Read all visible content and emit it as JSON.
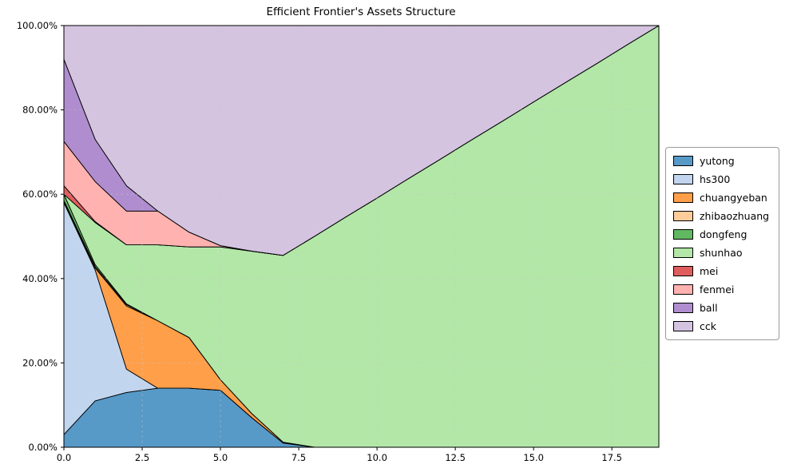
{
  "chart_data": {
    "type": "area",
    "stacked": true,
    "title": "Efficient Frontier's Assets Structure",
    "xlabel": "",
    "ylabel": "",
    "xlim": [
      0,
      19
    ],
    "ylim": [
      0,
      100
    ],
    "grid": true,
    "legend_position": "right",
    "edge_color": "#000000",
    "fill_opacity": 0.75,
    "x": [
      0,
      1,
      2,
      3,
      4,
      5,
      6,
      7,
      8,
      9,
      10,
      11,
      12,
      13,
      14,
      15,
      16,
      17,
      18,
      19
    ],
    "series": [
      {
        "name": "yutong",
        "color": "#1f77b4",
        "values": [
          3,
          11,
          13,
          14,
          14,
          13.5,
          7,
          1,
          0,
          0,
          0,
          0,
          0,
          0,
          0,
          0,
          0,
          0,
          0,
          0
        ]
      },
      {
        "name": "hs300",
        "color": "#aec7e8",
        "values": [
          55,
          31,
          5.5,
          0,
          0,
          0,
          0,
          0,
          0,
          0,
          0,
          0,
          0,
          0,
          0,
          0,
          0,
          0,
          0,
          0
        ]
      },
      {
        "name": "chuangyeban",
        "color": "#ff7f0e",
        "values": [
          0.3,
          0.5,
          15,
          16,
          12,
          2.5,
          1,
          0.2,
          0,
          0,
          0,
          0,
          0,
          0,
          0,
          0,
          0,
          0,
          0,
          0
        ]
      },
      {
        "name": "zhibaozhuang",
        "color": "#ffbb78",
        "values": [
          0.2,
          0.3,
          0.3,
          0,
          0,
          0,
          0,
          0,
          0,
          0,
          0,
          0,
          0,
          0,
          0,
          0,
          0,
          0,
          0,
          0
        ]
      },
      {
        "name": "dongfeng",
        "color": "#2ca02c",
        "values": [
          1.5,
          0.5,
          0.2,
          0,
          0,
          0,
          0,
          0,
          0,
          0,
          0,
          0,
          0,
          0,
          0,
          0,
          0,
          0,
          0,
          0
        ]
      },
      {
        "name": "shunhao",
        "color": "#98df8a",
        "values": [
          0,
          10,
          14,
          18,
          21.5,
          31.5,
          38.5,
          44.3,
          50,
          54.6,
          59.1,
          63.7,
          68.2,
          72.8,
          77.3,
          81.9,
          86.4,
          90.9,
          95.5,
          100
        ]
      },
      {
        "name": "mei",
        "color": "#d62728",
        "values": [
          2,
          0.2,
          0,
          0,
          0,
          0,
          0,
          0,
          0,
          0,
          0,
          0,
          0,
          0,
          0,
          0,
          0,
          0,
          0,
          0
        ]
      },
      {
        "name": "fenmei",
        "color": "#ff9896",
        "values": [
          10.5,
          9.5,
          8,
          8,
          3.5,
          0.3,
          0,
          0,
          0,
          0,
          0,
          0,
          0,
          0,
          0,
          0,
          0,
          0,
          0,
          0
        ]
      },
      {
        "name": "ball",
        "color": "#9467bd",
        "values": [
          19.5,
          10,
          6,
          0,
          0,
          0,
          0,
          0,
          0,
          0,
          0,
          0,
          0,
          0,
          0,
          0,
          0,
          0,
          0,
          0
        ]
      },
      {
        "name": "cck",
        "color": "#c5b0d5",
        "values": [
          8,
          27,
          38,
          44,
          49,
          52.2,
          53.5,
          54.5,
          50,
          45.4,
          40.9,
          36.3,
          31.8,
          27.2,
          22.7,
          18.1,
          13.6,
          9.1,
          4.5,
          0
        ]
      }
    ],
    "x_ticks": {
      "values": [
        0,
        2.5,
        5,
        7.5,
        10,
        12.5,
        15,
        17.5
      ],
      "labels": [
        "0.0",
        "2.5",
        "5.0",
        "7.5",
        "10.0",
        "12.5",
        "15.0",
        "17.5"
      ]
    },
    "y_ticks": {
      "values": [
        0,
        20,
        40,
        60,
        80,
        100
      ],
      "labels": [
        "0.00%",
        "20.00%",
        "40.00%",
        "60.00%",
        "80.00%",
        "100.00%"
      ]
    }
  }
}
